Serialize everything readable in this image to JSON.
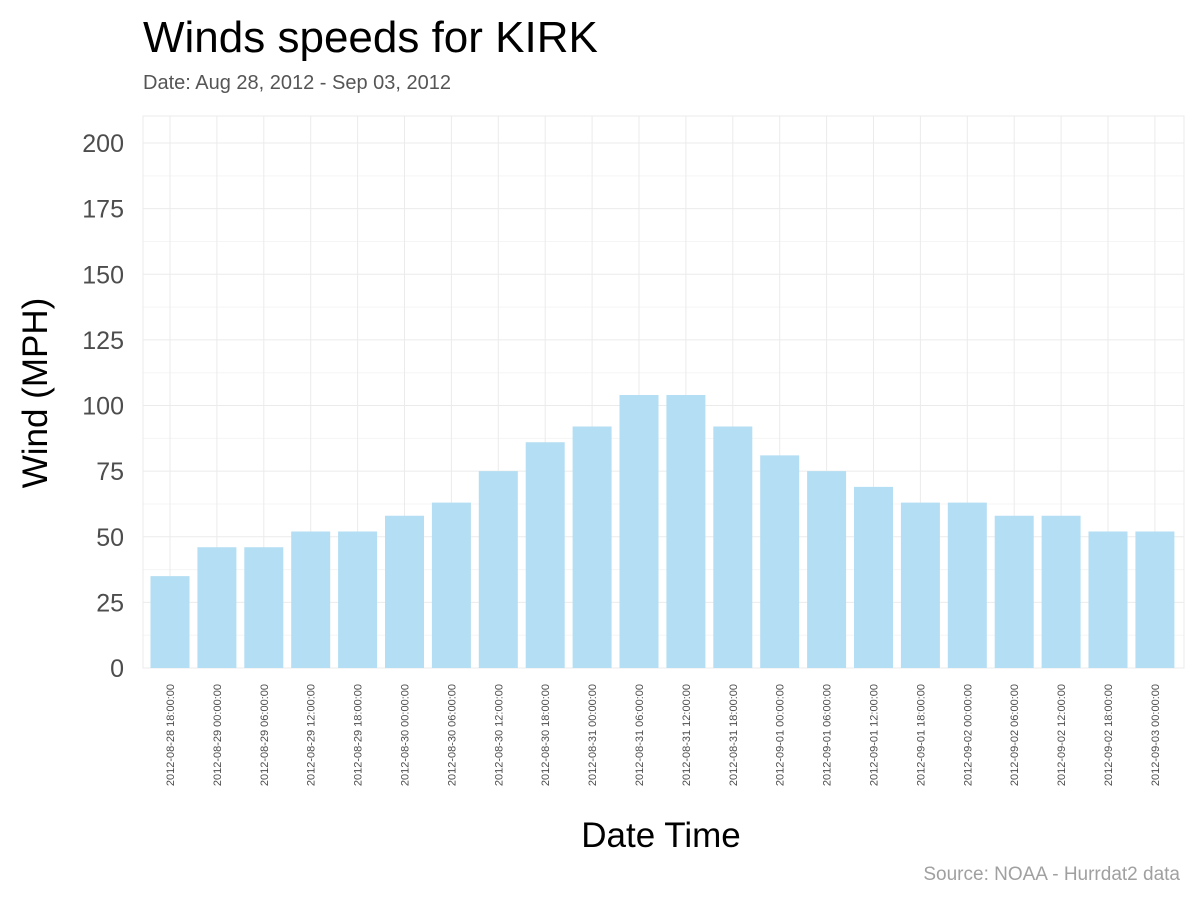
{
  "chart_data": {
    "type": "bar",
    "title": "Winds speeds for KIRK",
    "subtitle": "Date:  Aug 28, 2012 - Sep 03, 2012",
    "xlabel": "Date Time",
    "ylabel": "Wind (MPH)",
    "caption": "Source: NOAA - Hurrdat2 data",
    "ylim": [
      0,
      210
    ],
    "yticks": [
      "0",
      "25",
      "50",
      "75",
      "100",
      "125",
      "150",
      "175",
      "200"
    ],
    "ytick_values": [
      0,
      25,
      50,
      75,
      100,
      125,
      150,
      175,
      200
    ],
    "grid": true,
    "legend": "none",
    "bar_color": "#b3def3",
    "categories": [
      "2012-08-28 18:00:00",
      "2012-08-29 00:00:00",
      "2012-08-29 06:00:00",
      "2012-08-29 12:00:00",
      "2012-08-29 18:00:00",
      "2012-08-30 00:00:00",
      "2012-08-30 06:00:00",
      "2012-08-30 12:00:00",
      "2012-08-30 18:00:00",
      "2012-08-31 00:00:00",
      "2012-08-31 06:00:00",
      "2012-08-31 12:00:00",
      "2012-08-31 18:00:00",
      "2012-09-01 00:00:00",
      "2012-09-01 06:00:00",
      "2012-09-01 12:00:00",
      "2012-09-01 18:00:00",
      "2012-09-02 00:00:00",
      "2012-09-02 06:00:00",
      "2012-09-02 12:00:00",
      "2012-09-02 18:00:00",
      "2012-09-03 00:00:00"
    ],
    "values": [
      35,
      46,
      46,
      52,
      52,
      58,
      63,
      75,
      86,
      92,
      104,
      104,
      92,
      81,
      75,
      69,
      63,
      63,
      58,
      58,
      52,
      52
    ]
  }
}
